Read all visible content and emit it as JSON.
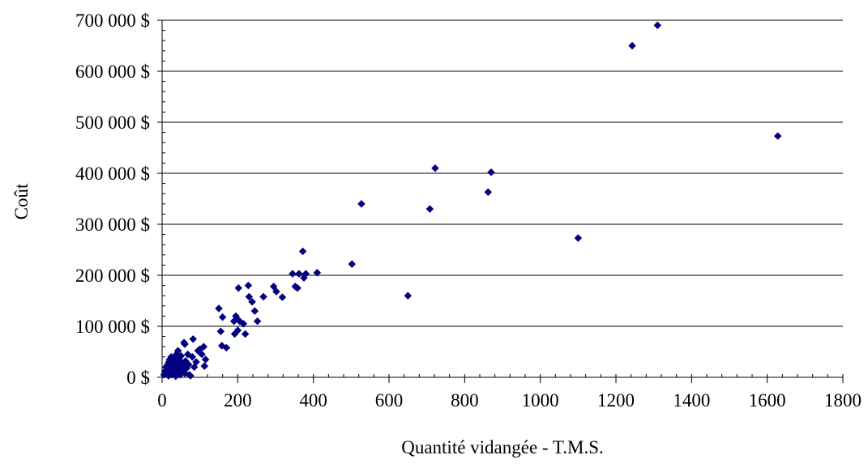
{
  "colors": {
    "marker": "#000080",
    "gridline": "#000000",
    "axis": "#000000",
    "background": "#ffffff"
  },
  "chart_data": {
    "type": "scatter",
    "title": "",
    "xlabel": "Quantité vidangée - T.M.S.",
    "ylabel": "Coût",
    "xlim": [
      0,
      1800
    ],
    "ylim": [
      0,
      700000
    ],
    "x_ticks": [
      0,
      200,
      400,
      600,
      800,
      1000,
      1200,
      1400,
      1600,
      1800
    ],
    "x_tick_labels": [
      "0",
      "200",
      "400",
      "600",
      "800",
      "1000",
      "1200",
      "1400",
      "1600",
      "1800"
    ],
    "y_ticks": [
      0,
      100000,
      200000,
      300000,
      400000,
      500000,
      600000,
      700000
    ],
    "y_tick_labels": [
      "0 $",
      "100 000 $",
      "200 000 $",
      "300 000 $",
      "400 000 $",
      "500 000 $",
      "600 000 $",
      "700 000 $"
    ],
    "grid": "horizontal",
    "legend": "none",
    "marker": "diamond",
    "points": [
      [
        5,
        5000
      ],
      [
        8,
        12000
      ],
      [
        10,
        20000
      ],
      [
        12,
        8000
      ],
      [
        14,
        15000
      ],
      [
        15,
        25000
      ],
      [
        17,
        3000
      ],
      [
        18,
        30000
      ],
      [
        20,
        10000
      ],
      [
        20,
        35000
      ],
      [
        22,
        18000
      ],
      [
        24,
        40000
      ],
      [
        25,
        5000
      ],
      [
        26,
        28000
      ],
      [
        28,
        12000
      ],
      [
        30,
        22000
      ],
      [
        30,
        38000
      ],
      [
        32,
        8000
      ],
      [
        34,
        30000
      ],
      [
        35,
        16000
      ],
      [
        36,
        2000
      ],
      [
        38,
        45000
      ],
      [
        40,
        25000
      ],
      [
        40,
        10000
      ],
      [
        42,
        52000
      ],
      [
        45,
        18000
      ],
      [
        45,
        35000
      ],
      [
        48,
        5000
      ],
      [
        50,
        28000
      ],
      [
        50,
        42000
      ],
      [
        52,
        15000
      ],
      [
        55,
        22000
      ],
      [
        58,
        68000
      ],
      [
        60,
        65000
      ],
      [
        60,
        8000
      ],
      [
        62,
        32000
      ],
      [
        65,
        18000
      ],
      [
        68,
        45000
      ],
      [
        70,
        25000
      ],
      [
        72,
        5000
      ],
      [
        75,
        3000
      ],
      [
        80,
        40000
      ],
      [
        82,
        75000
      ],
      [
        85,
        20000
      ],
      [
        90,
        30000
      ],
      [
        95,
        52000
      ],
      [
        100,
        55000
      ],
      [
        105,
        45000
      ],
      [
        110,
        60000
      ],
      [
        112,
        22000
      ],
      [
        115,
        35000
      ],
      [
        150,
        135000
      ],
      [
        155,
        90000
      ],
      [
        158,
        62000
      ],
      [
        160,
        118000
      ],
      [
        170,
        58000
      ],
      [
        190,
        110000
      ],
      [
        192,
        85000
      ],
      [
        195,
        120000
      ],
      [
        198,
        115000
      ],
      [
        200,
        92000
      ],
      [
        202,
        175000
      ],
      [
        205,
        110000
      ],
      [
        215,
        105000
      ],
      [
        220,
        85000
      ],
      [
        228,
        180000
      ],
      [
        230,
        158000
      ],
      [
        238,
        148000
      ],
      [
        245,
        130000
      ],
      [
        252,
        110000
      ],
      [
        268,
        158000
      ],
      [
        295,
        178000
      ],
      [
        302,
        168000
      ],
      [
        318,
        157000
      ],
      [
        345,
        203000
      ],
      [
        352,
        178000
      ],
      [
        358,
        175000
      ],
      [
        362,
        203000
      ],
      [
        372,
        247000
      ],
      [
        375,
        195000
      ],
      [
        380,
        203000
      ],
      [
        410,
        205000
      ],
      [
        502,
        222000
      ],
      [
        527,
        340000
      ],
      [
        650,
        160000
      ],
      [
        708,
        330000
      ],
      [
        722,
        410000
      ],
      [
        862,
        363000
      ],
      [
        870,
        402000
      ],
      [
        1100,
        273000
      ],
      [
        1243,
        650000
      ],
      [
        1310,
        690000
      ],
      [
        1628,
        473000
      ]
    ]
  }
}
